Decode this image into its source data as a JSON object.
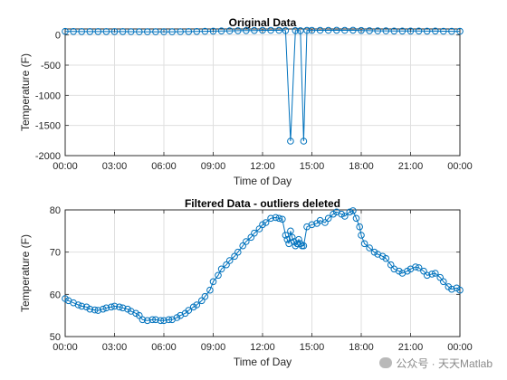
{
  "chart_data": [
    {
      "type": "line",
      "title": "Original Data",
      "xlabel": "Time of Day",
      "ylabel": "Temperature (F)",
      "xlim": [
        0,
        24
      ],
      "ylim": [
        -2000,
        100
      ],
      "xticks": [
        0,
        3,
        6,
        9,
        12,
        15,
        18,
        21,
        24
      ],
      "xtick_labels": [
        "00:00",
        "03:00",
        "06:00",
        "09:00",
        "12:00",
        "15:00",
        "18:00",
        "21:00",
        "00:00"
      ],
      "yticks": [
        0,
        -500,
        -1000,
        -1500,
        -2000
      ],
      "ytick_labels": [
        "0",
        "-500",
        "-1000",
        "-1500",
        "-2000"
      ],
      "grid": true,
      "marker": "circle",
      "color": "#0072BD",
      "x": [
        0.0,
        0.5,
        1.0,
        1.5,
        2.0,
        2.5,
        3.0,
        3.5,
        4.0,
        4.5,
        5.0,
        5.5,
        6.0,
        6.5,
        7.0,
        7.5,
        8.0,
        8.5,
        9.0,
        9.5,
        10.0,
        10.5,
        11.0,
        11.5,
        12.0,
        12.5,
        13.0,
        13.4,
        13.7,
        14.0,
        14.3,
        14.5,
        14.7,
        15.0,
        15.5,
        16.0,
        16.5,
        17.0,
        17.5,
        18.0,
        18.5,
        19.0,
        19.5,
        20.0,
        20.5,
        21.0,
        21.5,
        22.0,
        22.5,
        23.0,
        23.5,
        24.0
      ],
      "y": [
        59,
        58,
        57,
        57,
        56,
        57,
        57,
        56,
        55,
        54,
        54,
        54,
        54,
        54,
        55,
        57,
        58,
        61,
        64,
        67,
        69,
        71,
        73,
        75,
        77,
        78,
        78,
        73,
        -1760,
        73,
        72,
        -1760,
        76,
        76,
        77,
        78,
        79,
        78,
        79,
        74,
        71,
        69,
        68,
        66,
        65,
        66,
        66,
        64,
        65,
        62,
        61,
        61
      ]
    },
    {
      "type": "line",
      "title": "Filtered Data - outliers deleted",
      "xlabel": "Time of Day",
      "ylabel": "Temperature (F)",
      "xlim": [
        0,
        24
      ],
      "ylim": [
        50,
        80
      ],
      "xticks": [
        0,
        3,
        6,
        9,
        12,
        15,
        18,
        21,
        24
      ],
      "xtick_labels": [
        "00:00",
        "03:00",
        "06:00",
        "09:00",
        "12:00",
        "15:00",
        "18:00",
        "21:00",
        "00:00"
      ],
      "yticks": [
        80,
        70,
        60,
        50
      ],
      "ytick_labels": [
        "80",
        "70",
        "60",
        "50"
      ],
      "grid": true,
      "marker": "circle",
      "color": "#0072BD",
      "x": [
        0.0,
        0.2,
        0.5,
        0.8,
        1.0,
        1.3,
        1.5,
        1.8,
        2.0,
        2.3,
        2.5,
        2.8,
        3.0,
        3.3,
        3.5,
        3.8,
        4.0,
        4.3,
        4.5,
        4.7,
        5.0,
        5.3,
        5.5,
        5.8,
        6.0,
        6.3,
        6.5,
        6.8,
        7.0,
        7.3,
        7.5,
        7.8,
        8.0,
        8.3,
        8.5,
        8.8,
        9.0,
        9.3,
        9.5,
        9.8,
        10.0,
        10.3,
        10.5,
        10.8,
        11.0,
        11.3,
        11.5,
        11.8,
        12.0,
        12.2,
        12.5,
        12.8,
        13.0,
        13.2,
        13.4,
        13.5,
        13.6,
        13.7,
        13.8,
        13.9,
        14.0,
        14.1,
        14.2,
        14.3,
        14.4,
        14.5,
        14.7,
        15.0,
        15.3,
        15.5,
        15.8,
        16.0,
        16.3,
        16.5,
        16.8,
        17.0,
        17.3,
        17.5,
        17.7,
        17.9,
        18.0,
        18.2,
        18.5,
        18.8,
        19.0,
        19.3,
        19.5,
        19.8,
        20.0,
        20.3,
        20.5,
        20.8,
        21.0,
        21.3,
        21.5,
        21.8,
        22.0,
        22.3,
        22.5,
        22.8,
        23.0,
        23.3,
        23.5,
        23.8,
        24.0
      ],
      "y": [
        59.0,
        58.5,
        58.0,
        57.5,
        57.2,
        57.0,
        56.5,
        56.3,
        56.2,
        56.5,
        56.8,
        57.0,
        57.2,
        57.0,
        56.8,
        56.5,
        56.0,
        55.5,
        55.0,
        54.0,
        53.8,
        54.0,
        54.0,
        53.8,
        53.8,
        54.0,
        54.0,
        54.5,
        55.0,
        55.5,
        56.2,
        57.0,
        57.5,
        58.5,
        59.5,
        61.0,
        63.0,
        64.5,
        66.0,
        67.0,
        68.0,
        69.0,
        70.0,
        71.5,
        72.5,
        73.5,
        74.5,
        75.5,
        76.5,
        77.0,
        78.0,
        78.2,
        78.0,
        77.8,
        74.0,
        73.0,
        72.0,
        75.0,
        73.5,
        72.5,
        71.5,
        72.0,
        73.0,
        72.0,
        71.5,
        71.5,
        76.0,
        76.5,
        76.8,
        77.5,
        77.0,
        78.0,
        79.0,
        79.5,
        79.0,
        78.5,
        79.5,
        79.8,
        78.0,
        76.0,
        74.0,
        72.0,
        71.0,
        70.0,
        69.5,
        69.0,
        68.5,
        67.0,
        66.0,
        65.5,
        65.0,
        65.5,
        66.0,
        66.5,
        66.3,
        65.5,
        64.5,
        64.8,
        65.0,
        64.0,
        63.0,
        61.8,
        61.2,
        61.5,
        61.0
      ]
    }
  ],
  "watermark": "公众号 · 天天Matlab"
}
